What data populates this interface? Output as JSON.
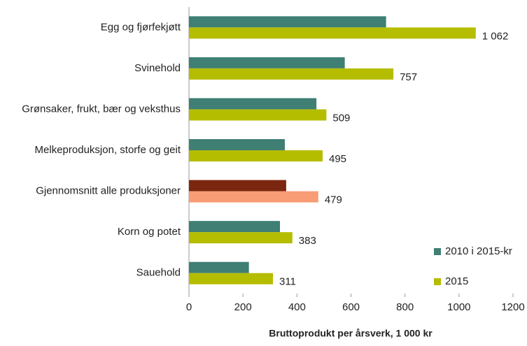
{
  "chart_data": {
    "type": "hbar",
    "x_label": "Bruttoprodukt per årsverk, 1 000 kr",
    "categories": [
      "Egg og fjørfekjøtt",
      "Svinehold",
      "Grønsaker, frukt, bær og veksthus",
      "Melkeproduksjon, storfe og geit",
      "Gjennomsnitt alle produksjoner",
      "Korn og potet",
      "Sauehold"
    ],
    "series": [
      {
        "name": "2010 i 2015-kr",
        "color": "#3f7f74",
        "colors": [
          "#3f7f74",
          "#3f7f74",
          "#3f7f74",
          "#3f7f74",
          "#7b2710",
          "#3f7f74",
          "#3f7f74"
        ],
        "values": [
          730,
          577,
          472,
          355,
          360,
          337,
          222
        ]
      },
      {
        "name": "2015",
        "color": "#b5bd00",
        "colors": [
          "#b5bd00",
          "#b5bd00",
          "#b5bd00",
          "#b5bd00",
          "#f79c74",
          "#b5bd00",
          "#b5bd00"
        ],
        "values": [
          1062,
          757,
          509,
          495,
          479,
          383,
          311
        ],
        "value_labels": [
          "1 062",
          "757",
          "509",
          "495",
          "479",
          "383",
          "311"
        ]
      }
    ],
    "xlim": [
      0,
      1200
    ],
    "xticks": [
      0,
      200,
      400,
      600,
      800,
      1000,
      1200
    ],
    "grid": false,
    "legend": "lower right"
  }
}
